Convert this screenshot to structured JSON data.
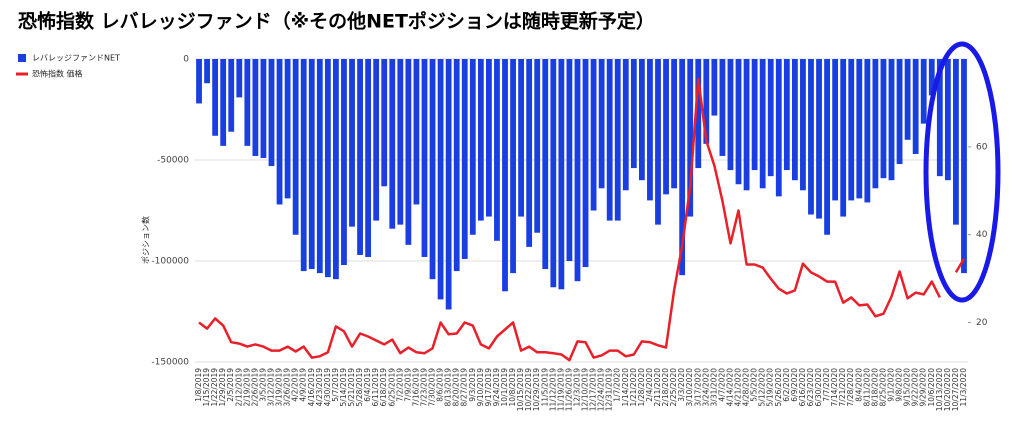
{
  "chart_data": {
    "type": "bar_line",
    "title": "恐怖指数 レバレッジファンド（※その他NETポジションは随時更新予定）",
    "y_label": "ポジション数",
    "categories": [
      "1/8/2019",
      "1/15/2019",
      "1/22/2019",
      "1/29/2019",
      "2/5/2019",
      "2/12/2019",
      "2/19/2019",
      "2/26/2019",
      "3/5/2019",
      "3/12/2019",
      "3/19/2019",
      "3/26/2019",
      "4/2/2019",
      "4/9/2019",
      "4/16/2019",
      "4/23/2019",
      "4/30/2019",
      "5/7/2019",
      "5/14/2019",
      "5/21/2019",
      "5/28/2019",
      "6/4/2019",
      "6/11/2019",
      "6/18/2019",
      "6/25/2019",
      "7/2/2019",
      "7/9/2019",
      "7/16/2019",
      "7/23/2019",
      "7/30/2019",
      "8/6/2019",
      "8/13/2019",
      "8/20/2019",
      "8/27/2019",
      "9/3/2019",
      "9/10/2019",
      "9/17/2019",
      "9/24/2019",
      "10/1/2019",
      "10/8/2019",
      "10/15/2019",
      "10/22/2019",
      "10/29/2019",
      "11/5/2019",
      "11/12/2019",
      "11/19/2019",
      "11/26/2019",
      "12/3/2019",
      "12/10/2019",
      "12/17/2019",
      "12/24/2019",
      "12/31/2019",
      "1/7/2020",
      "1/14/2020",
      "1/21/2020",
      "1/28/2020",
      "2/4/2020",
      "2/11/2020",
      "2/18/2020",
      "2/25/2020",
      "3/3/2020",
      "3/10/2020",
      "3/17/2020",
      "3/24/2020",
      "3/31/2020",
      "4/7/2020",
      "4/14/2020",
      "4/21/2020",
      "4/28/2020",
      "5/5/2020",
      "5/12/2020",
      "5/19/2020",
      "5/26/2020",
      "6/2/2020",
      "6/9/2020",
      "6/16/2020",
      "6/23/2020",
      "6/30/2020",
      "7/7/2020",
      "7/14/2020",
      "7/21/2020",
      "7/28/2020",
      "8/4/2020",
      "8/11/2020",
      "8/18/2020",
      "8/25/2020",
      "9/1/2020",
      "9/8/2020",
      "9/15/2020",
      "9/22/2020",
      "9/29/2020",
      "10/6/2020",
      "10/13/2020",
      "10/20/2020",
      "10/27/2020",
      "11/3/2020"
    ],
    "series": [
      {
        "name": "レバレッジファンドNET",
        "color": "#1a3ee0",
        "values": [
          -22000,
          -12000,
          -38000,
          -43000,
          -36000,
          -19000,
          -43000,
          -48000,
          -49000,
          -53000,
          -72000,
          -69000,
          -87000,
          -105000,
          -104000,
          -106000,
          -108000,
          -109000,
          -102000,
          -83000,
          -97000,
          -98000,
          -80000,
          -63000,
          -84000,
          -82000,
          -92000,
          -72000,
          -98000,
          -109000,
          -119000,
          -124000,
          -105000,
          -99000,
          -87000,
          -80000,
          -78000,
          -90000,
          -115000,
          -106000,
          -78000,
          -93000,
          -86000,
          -104000,
          -113000,
          -114000,
          -100000,
          -110000,
          -103000,
          -75000,
          -64000,
          -80000,
          -80000,
          -65000,
          -54000,
          -60000,
          -70000,
          -82000,
          -67000,
          -64000,
          -107000,
          -78000,
          -54000,
          -42000,
          -28000,
          -48000,
          -55000,
          -62000,
          -65000,
          -55000,
          -64000,
          -58000,
          -68000,
          -55000,
          -60000,
          -65000,
          -77000,
          -79000,
          -87000,
          -70000,
          -78000,
          -70000,
          -69000,
          -71000,
          -64000,
          -59000,
          -60000,
          -52000,
          -40000,
          -47000,
          -32000,
          -18000,
          -58000,
          -60000,
          -82000,
          -106000
        ]
      },
      {
        "name": "恐怖指数 価格",
        "color": "#e8202a",
        "axis": "y2",
        "values": [
          20,
          18.6,
          20.9,
          19.3,
          15.5,
          15.2,
          14.5,
          15,
          14.5,
          13.6,
          13.6,
          14.5,
          13.4,
          14.5,
          12,
          12.3,
          13.2,
          19.1,
          18,
          14.5,
          17.5,
          16.8,
          15.9,
          15,
          16.1,
          13,
          14.3,
          13.2,
          13,
          14.1,
          20,
          17.3,
          17.5,
          20,
          19.3,
          15,
          14.1,
          16.8,
          18.4,
          20,
          13.6,
          14.5,
          13.2,
          13.2,
          13,
          12.7,
          11.4,
          15.7,
          15.5,
          12,
          12.5,
          13.6,
          13.6,
          12.3,
          12.7,
          15.7,
          15.5,
          14.8,
          14.3,
          27.3,
          37.5,
          50.9,
          75.5,
          61.4,
          55.7,
          47.7,
          38,
          45.5,
          33.2,
          33.2,
          32.5,
          30,
          27.7,
          26.6,
          27.3,
          33.4,
          31.4,
          30.5,
          29.3,
          29.3,
          24.5,
          25.7,
          23.9,
          24.1,
          21.4,
          22,
          25.9,
          31.6,
          25.5,
          26.8,
          26.4,
          29.3,
          25.7,
          null,
          31.4,
          34.5
        ]
      }
    ],
    "ylim": [
      -150000,
      0
    ],
    "yticks": [
      0,
      -50000,
      -100000,
      -150000
    ],
    "y2lim": [
      11,
      80
    ],
    "y2ticks": [
      20,
      40,
      60
    ],
    "grid": true,
    "legend": "left"
  }
}
